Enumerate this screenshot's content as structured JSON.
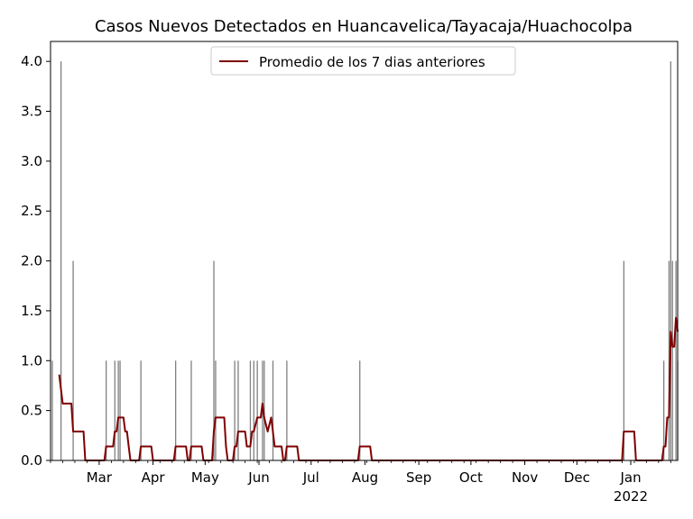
{
  "chart_data": {
    "type": "bar+line",
    "title": "Casos Nuevos Detectados en Huancavelica/Tayacaja/Huachocolpa",
    "xlabel": "",
    "ylabel": "",
    "x_range": [
      "2021-02-01",
      "2022-01-28"
    ],
    "ylim": [
      0,
      4.2
    ],
    "y_ticks": [
      "0.0",
      "0.5",
      "1.0",
      "1.5",
      "2.0",
      "2.5",
      "3.0",
      "3.5",
      "4.0"
    ],
    "x_ticks": [
      {
        "date": "2021-03-01",
        "label": "Mar",
        "sub": ""
      },
      {
        "date": "2021-04-01",
        "label": "Apr",
        "sub": ""
      },
      {
        "date": "2021-05-01",
        "label": "May",
        "sub": ""
      },
      {
        "date": "2021-06-01",
        "label": "Jun",
        "sub": ""
      },
      {
        "date": "2021-07-01",
        "label": "Jul",
        "sub": ""
      },
      {
        "date": "2021-08-01",
        "label": "Aug",
        "sub": ""
      },
      {
        "date": "2021-09-01",
        "label": "Sep",
        "sub": ""
      },
      {
        "date": "2021-10-01",
        "label": "Oct",
        "sub": ""
      },
      {
        "date": "2021-11-01",
        "label": "Nov",
        "sub": ""
      },
      {
        "date": "2021-12-01",
        "label": "Dec",
        "sub": ""
      },
      {
        "date": "2022-01-01",
        "label": "Jan",
        "sub": "2022"
      }
    ],
    "bar_color": "#808080",
    "line_color": "#800000",
    "grid": false,
    "legend_position": "top-center",
    "series": [
      {
        "name": "",
        "type": "bar",
        "points": [
          [
            "2021-02-02",
            1
          ],
          [
            "2021-02-07",
            4
          ],
          [
            "2021-02-14",
            2
          ],
          [
            "2021-03-05",
            1
          ],
          [
            "2021-03-10",
            1
          ],
          [
            "2021-03-12",
            1
          ],
          [
            "2021-03-13",
            1
          ],
          [
            "2021-03-25",
            1
          ],
          [
            "2021-04-14",
            1
          ],
          [
            "2021-04-23",
            1
          ],
          [
            "2021-05-06",
            2
          ],
          [
            "2021-05-07",
            1
          ],
          [
            "2021-05-18",
            1
          ],
          [
            "2021-05-20",
            1
          ],
          [
            "2021-05-27",
            1
          ],
          [
            "2021-05-29",
            1
          ],
          [
            "2021-05-31",
            1
          ],
          [
            "2021-06-03",
            1
          ],
          [
            "2021-06-04",
            1
          ],
          [
            "2021-06-09",
            1
          ],
          [
            "2021-06-17",
            1
          ],
          [
            "2021-07-29",
            1
          ],
          [
            "2021-12-28",
            2
          ],
          [
            "2022-01-20",
            1
          ],
          [
            "2022-01-23",
            2
          ],
          [
            "2022-01-24",
            4
          ],
          [
            "2022-01-25",
            2
          ],
          [
            "2022-01-27",
            2
          ],
          [
            "2022-01-28",
            1
          ]
        ]
      },
      {
        "name": "Promedio de los 7 dias anteriores",
        "type": "line",
        "points": [
          [
            "2021-02-06",
            0.86
          ],
          [
            "2021-02-08",
            0.57
          ],
          [
            "2021-02-13",
            0.57
          ],
          [
            "2021-02-14",
            0.29
          ],
          [
            "2021-02-20",
            0.29
          ],
          [
            "2021-02-21",
            0.0
          ],
          [
            "2021-03-04",
            0.0
          ],
          [
            "2021-03-05",
            0.14
          ],
          [
            "2021-03-09",
            0.14
          ],
          [
            "2021-03-10",
            0.29
          ],
          [
            "2021-03-11",
            0.29
          ],
          [
            "2021-03-12",
            0.43
          ],
          [
            "2021-03-15",
            0.43
          ],
          [
            "2021-03-16",
            0.29
          ],
          [
            "2021-03-17",
            0.29
          ],
          [
            "2021-03-18",
            0.14
          ],
          [
            "2021-03-19",
            0.0
          ],
          [
            "2021-03-24",
            0.0
          ],
          [
            "2021-03-25",
            0.14
          ],
          [
            "2021-03-31",
            0.14
          ],
          [
            "2021-04-01",
            0.0
          ],
          [
            "2021-04-13",
            0.0
          ],
          [
            "2021-04-14",
            0.14
          ],
          [
            "2021-04-20",
            0.14
          ],
          [
            "2021-04-21",
            0.0
          ],
          [
            "2021-04-22",
            0.0
          ],
          [
            "2021-04-23",
            0.14
          ],
          [
            "2021-04-29",
            0.14
          ],
          [
            "2021-04-30",
            0.0
          ],
          [
            "2021-05-05",
            0.0
          ],
          [
            "2021-05-06",
            0.29
          ],
          [
            "2021-05-07",
            0.43
          ],
          [
            "2021-05-12",
            0.43
          ],
          [
            "2021-05-13",
            0.14
          ],
          [
            "2021-05-14",
            0.0
          ],
          [
            "2021-05-17",
            0.0
          ],
          [
            "2021-05-18",
            0.14
          ],
          [
            "2021-05-19",
            0.14
          ],
          [
            "2021-05-20",
            0.29
          ],
          [
            "2021-05-24",
            0.29
          ],
          [
            "2021-05-25",
            0.14
          ],
          [
            "2021-05-27",
            0.14
          ],
          [
            "2021-05-28",
            0.29
          ],
          [
            "2021-05-29",
            0.29
          ],
          [
            "2021-05-31",
            0.43
          ],
          [
            "2021-06-02",
            0.43
          ],
          [
            "2021-06-03",
            0.57
          ],
          [
            "2021-06-04",
            0.43
          ],
          [
            "2021-06-06",
            0.29
          ],
          [
            "2021-06-08",
            0.43
          ],
          [
            "2021-06-09",
            0.29
          ],
          [
            "2021-06-10",
            0.14
          ],
          [
            "2021-06-14",
            0.14
          ],
          [
            "2021-06-15",
            0.0
          ],
          [
            "2021-06-16",
            0.0
          ],
          [
            "2021-06-17",
            0.14
          ],
          [
            "2021-06-23",
            0.14
          ],
          [
            "2021-06-24",
            0.0
          ],
          [
            "2021-07-28",
            0.0
          ],
          [
            "2021-07-29",
            0.14
          ],
          [
            "2021-08-04",
            0.14
          ],
          [
            "2021-08-05",
            0.0
          ],
          [
            "2021-12-27",
            0.0
          ],
          [
            "2021-12-28",
            0.29
          ],
          [
            "2022-01-03",
            0.29
          ],
          [
            "2022-01-04",
            0.0
          ],
          [
            "2022-01-19",
            0.0
          ],
          [
            "2022-01-20",
            0.14
          ],
          [
            "2022-01-21",
            0.14
          ],
          [
            "2022-01-22",
            0.43
          ],
          [
            "2022-01-23",
            0.43
          ],
          [
            "2022-01-24",
            1.29
          ],
          [
            "2022-01-25",
            1.14
          ],
          [
            "2022-01-26",
            1.14
          ],
          [
            "2022-01-27",
            1.43
          ],
          [
            "2022-01-28",
            1.29
          ]
        ]
      }
    ]
  }
}
